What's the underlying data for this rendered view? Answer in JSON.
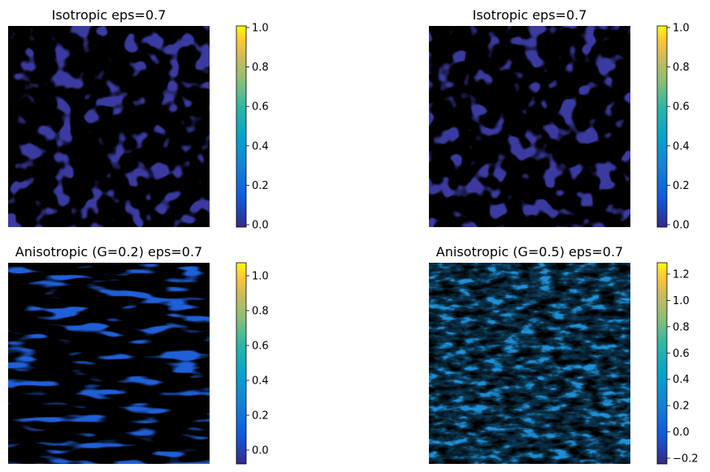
{
  "chart_data": [
    {
      "type": "heatmap",
      "title": "Isotropic eps=0.7",
      "pattern": "isotropic labyrinth stripes",
      "colormap": "parula",
      "clim": [
        0.0,
        1.0
      ],
      "colorbar_ticks": [
        "0.0",
        "0.2",
        "0.4",
        "0.6",
        "0.8",
        "1.0"
      ]
    },
    {
      "type": "heatmap",
      "title": "Isotropic eps=0.7",
      "pattern": "isotropic labyrinth stripes",
      "colormap": "parula",
      "clim": [
        0.0,
        1.0
      ],
      "colorbar_ticks": [
        "0.0",
        "0.2",
        "0.4",
        "0.6",
        "0.8",
        "1.0"
      ]
    },
    {
      "type": "heatmap",
      "title": "Anisotropic (G=0.2) eps=0.7",
      "pattern": "horizontal stripes with diagonal offsets",
      "colormap": "parula",
      "clim": [
        -0.08,
        1.08
      ],
      "colorbar_ticks": [
        "0.0",
        "0.2",
        "0.4",
        "0.6",
        "0.8",
        "1.0"
      ]
    },
    {
      "type": "heatmap",
      "title": "Anisotropic (G=0.5) eps=0.7",
      "pattern": "triangular / chevron texture",
      "colormap": "parula",
      "clim": [
        -0.25,
        1.3
      ],
      "colorbar_ticks": [
        "−0.2",
        "0.0",
        "0.2",
        "0.4",
        "0.6",
        "0.8",
        "1.0",
        "1.2"
      ]
    }
  ]
}
